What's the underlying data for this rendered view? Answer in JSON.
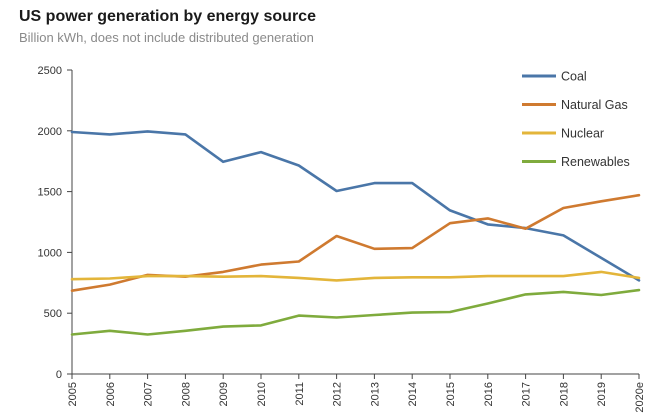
{
  "header": {
    "title": "US power generation by energy source",
    "subtitle": "Billion kWh, does not include distributed generation"
  },
  "chart_data": {
    "type": "line",
    "title": "US power generation by energy source",
    "subtitle": "Billion kWh, does not include distributed generation",
    "x": [
      "2005",
      "2006",
      "2007",
      "2008",
      "2009",
      "2010",
      "2011",
      "2012",
      "2013",
      "2014",
      "2015",
      "2016",
      "2017",
      "2018",
      "2019",
      "2020e"
    ],
    "ylim": [
      0,
      2500
    ],
    "yticks": [
      0,
      500,
      1000,
      1500,
      2000,
      2500
    ],
    "grid": false,
    "legend": "top-right",
    "series": [
      {
        "name": "Coal",
        "color": "#4a76a8",
        "values": [
          1990,
          1970,
          1995,
          1970,
          1745,
          1825,
          1715,
          1505,
          1570,
          1570,
          1345,
          1230,
          1200,
          1140,
          955,
          770
        ]
      },
      {
        "name": "Natural Gas",
        "color": "#cf7a30",
        "values": [
          685,
          735,
          815,
          800,
          840,
          900,
          925,
          1135,
          1030,
          1035,
          1240,
          1280,
          1195,
          1365,
          1420,
          1470
        ]
      },
      {
        "name": "Nuclear",
        "color": "#e3b53a",
        "values": [
          780,
          785,
          805,
          805,
          800,
          805,
          790,
          770,
          790,
          795,
          795,
          805,
          805,
          805,
          840,
          790
        ]
      },
      {
        "name": "Renewables",
        "color": "#7fab3d",
        "values": [
          325,
          355,
          325,
          355,
          390,
          400,
          480,
          465,
          485,
          505,
          510,
          580,
          655,
          675,
          650,
          690
        ]
      }
    ]
  }
}
